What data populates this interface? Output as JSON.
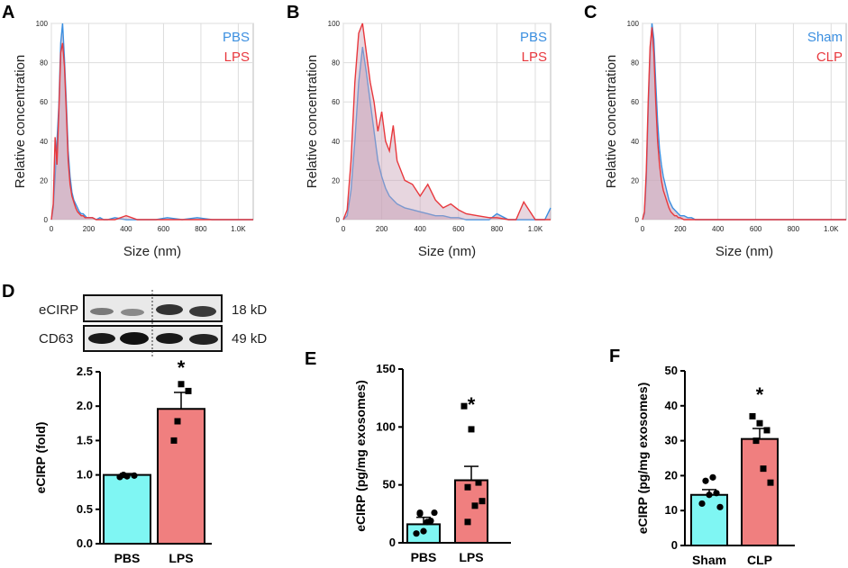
{
  "colors": {
    "pbs_line": "#3b8fe0",
    "lps_line": "#e8383d",
    "fill_overlap": "#c9a4b9",
    "bar_control": "#7ff6f3",
    "bar_treated": "#f07f7f"
  },
  "panel_letters": [
    "A",
    "B",
    "C",
    "D",
    "E",
    "F"
  ],
  "chart_data": [
    {
      "panel": "A",
      "type": "area",
      "ylabel": "Relative concentration",
      "xlabel": "Size (nm)",
      "xticks": [
        "0",
        "200",
        "400",
        "600",
        "800",
        "1.0K"
      ],
      "yticks": [
        "0",
        "20",
        "40",
        "60",
        "80",
        "100"
      ],
      "xlim": [
        0,
        1080
      ],
      "ylim": [
        0,
        100
      ],
      "legend": [
        "PBS",
        "LPS"
      ],
      "series": [
        {
          "name": "PBS",
          "x": [
            0,
            10,
            20,
            30,
            40,
            50,
            60,
            70,
            80,
            90,
            100,
            110,
            120,
            130,
            140,
            150,
            160,
            170,
            180,
            190,
            200,
            220,
            240,
            260,
            280,
            300,
            340,
            400,
            460,
            500,
            560,
            620,
            700,
            780,
            860,
            900,
            1000,
            1080
          ],
          "values": [
            0,
            6,
            22,
            40,
            58,
            90,
            100,
            82,
            60,
            35,
            22,
            14,
            10,
            8,
            6,
            4,
            3,
            3,
            2,
            1,
            1,
            1,
            0,
            1,
            0,
            0,
            1,
            0,
            0,
            0,
            0,
            1,
            0,
            1,
            0,
            0,
            0,
            0
          ]
        },
        {
          "name": "LPS",
          "x": [
            0,
            10,
            20,
            30,
            40,
            50,
            60,
            70,
            80,
            90,
            100,
            110,
            120,
            130,
            140,
            150,
            160,
            170,
            180,
            190,
            200,
            220,
            240,
            260,
            280,
            300,
            340,
            400,
            460,
            500,
            560,
            620,
            700,
            780,
            860,
            900,
            1000,
            1080
          ],
          "values": [
            0,
            8,
            42,
            28,
            55,
            85,
            90,
            78,
            55,
            30,
            18,
            12,
            9,
            6,
            4,
            3,
            2,
            2,
            1,
            1,
            1,
            1,
            0,
            0,
            0,
            0,
            0,
            2,
            0,
            0,
            0,
            0,
            0,
            0,
            0,
            0,
            0,
            0
          ]
        }
      ]
    },
    {
      "panel": "B",
      "type": "area",
      "ylabel": "Relative concentration",
      "xlabel": "Size (nm)",
      "xticks": [
        "0",
        "200",
        "400",
        "600",
        "800",
        "1.0K"
      ],
      "yticks": [
        "0",
        "20",
        "40",
        "60",
        "80",
        "100"
      ],
      "xlim": [
        0,
        1080
      ],
      "ylim": [
        0,
        100
      ],
      "legend": [
        "PBS",
        "LPS"
      ],
      "series": [
        {
          "name": "PBS",
          "x": [
            0,
            20,
            40,
            60,
            80,
            100,
            120,
            140,
            160,
            180,
            200,
            220,
            240,
            260,
            280,
            300,
            320,
            360,
            400,
            440,
            480,
            520,
            560,
            600,
            640,
            700,
            760,
            800,
            860,
            900,
            940,
            1000,
            1050,
            1080
          ],
          "values": [
            0,
            2,
            15,
            40,
            70,
            88,
            75,
            60,
            45,
            30,
            22,
            16,
            12,
            10,
            8,
            7,
            6,
            5,
            4,
            3,
            2,
            2,
            1,
            1,
            0,
            0,
            0,
            3,
            0,
            0,
            0,
            0,
            0,
            6
          ]
        },
        {
          "name": "LPS",
          "x": [
            0,
            20,
            40,
            60,
            80,
            100,
            120,
            140,
            160,
            180,
            200,
            220,
            240,
            260,
            280,
            300,
            320,
            360,
            400,
            440,
            480,
            520,
            560,
            600,
            640,
            700,
            760,
            800,
            860,
            900,
            940,
            1000,
            1050,
            1080
          ],
          "values": [
            0,
            5,
            30,
            70,
            95,
            100,
            85,
            70,
            60,
            45,
            55,
            40,
            35,
            48,
            30,
            25,
            20,
            18,
            12,
            18,
            10,
            6,
            8,
            5,
            3,
            2,
            1,
            1,
            0,
            0,
            9,
            0,
            0,
            0
          ]
        }
      ]
    },
    {
      "panel": "C",
      "type": "area",
      "ylabel": "Relative concentration",
      "xlabel": "Size (nm)",
      "xticks": [
        "0",
        "200",
        "400",
        "600",
        "800",
        "1.0K"
      ],
      "yticks": [
        "0",
        "20",
        "40",
        "60",
        "80",
        "100"
      ],
      "xlim": [
        0,
        1080
      ],
      "ylim": [
        0,
        100
      ],
      "legend": [
        "Sham",
        "CLP"
      ],
      "series": [
        {
          "name": "Sham",
          "x": [
            0,
            10,
            20,
            30,
            40,
            50,
            60,
            70,
            80,
            90,
            100,
            110,
            120,
            130,
            140,
            150,
            160,
            170,
            180,
            190,
            200,
            220,
            240,
            260,
            280,
            300,
            400,
            600,
            800,
            1080
          ],
          "values": [
            0,
            3,
            20,
            55,
            85,
            100,
            92,
            70,
            50,
            36,
            28,
            22,
            18,
            14,
            10,
            8,
            6,
            5,
            4,
            3,
            2,
            2,
            1,
            1,
            0,
            0,
            0,
            0,
            0,
            0
          ]
        },
        {
          "name": "CLP",
          "x": [
            0,
            10,
            20,
            30,
            40,
            50,
            60,
            70,
            80,
            90,
            100,
            110,
            120,
            130,
            140,
            150,
            160,
            170,
            180,
            190,
            200,
            220,
            240,
            260,
            280,
            300,
            400,
            600,
            800,
            1080
          ],
          "values": [
            0,
            4,
            25,
            60,
            88,
            98,
            85,
            60,
            40,
            28,
            20,
            15,
            12,
            9,
            6,
            4,
            3,
            2,
            2,
            1,
            1,
            0,
            0,
            0,
            0,
            0,
            0,
            0,
            0,
            0
          ]
        }
      ]
    },
    {
      "panel": "D",
      "type": "bar",
      "categories": [
        "PBS",
        "LPS"
      ],
      "values": [
        1.0,
        1.96
      ],
      "errors": [
        0.02,
        0.24
      ],
      "points": [
        [
          0.97,
          0.98,
          0.99,
          1.0
        ],
        [
          1.5,
          2.32,
          2.22,
          1.78
        ]
      ],
      "significance": [
        "",
        "*"
      ],
      "ylabel": "eCIRP (fold)",
      "yticks": [
        "0.0",
        "0.5",
        "1.0",
        "1.5",
        "2.0",
        "2.5"
      ],
      "ylim": [
        0,
        2.5
      ],
      "blot": {
        "rows": [
          {
            "label": "eCIRP",
            "kd": "18 kD"
          },
          {
            "label": "CD63",
            "kd": "49 kD"
          }
        ]
      }
    },
    {
      "panel": "E",
      "type": "bar",
      "categories": [
        "PBS",
        "LPS"
      ],
      "values": [
        16,
        54
      ],
      "errors": [
        6,
        12
      ],
      "points": [
        [
          8,
          10,
          19,
          25,
          18,
          26,
          26
        ],
        [
          118,
          98,
          52,
          18,
          32,
          36,
          48
        ]
      ],
      "significance": [
        "",
        "*"
      ],
      "ylabel": "eCIRP (pg/mg exosomes)",
      "yticks": [
        "0",
        "50",
        "100",
        "150"
      ],
      "ylim": [
        0,
        150
      ]
    },
    {
      "panel": "F",
      "type": "bar",
      "categories": [
        "Sham",
        "CLP"
      ],
      "values": [
        14.5,
        30.5
      ],
      "errors": [
        1.5,
        3.0
      ],
      "points": [
        [
          12,
          14.5,
          15,
          18.5,
          19.5,
          11
        ],
        [
          37,
          35,
          33,
          30,
          22,
          18
        ]
      ],
      "significance": [
        "",
        "*"
      ],
      "ylabel": "eCIRP (pg/mg exosomes)",
      "yticks": [
        "0",
        "10",
        "20",
        "30",
        "40",
        "50"
      ],
      "ylim": [
        0,
        50
      ]
    }
  ]
}
